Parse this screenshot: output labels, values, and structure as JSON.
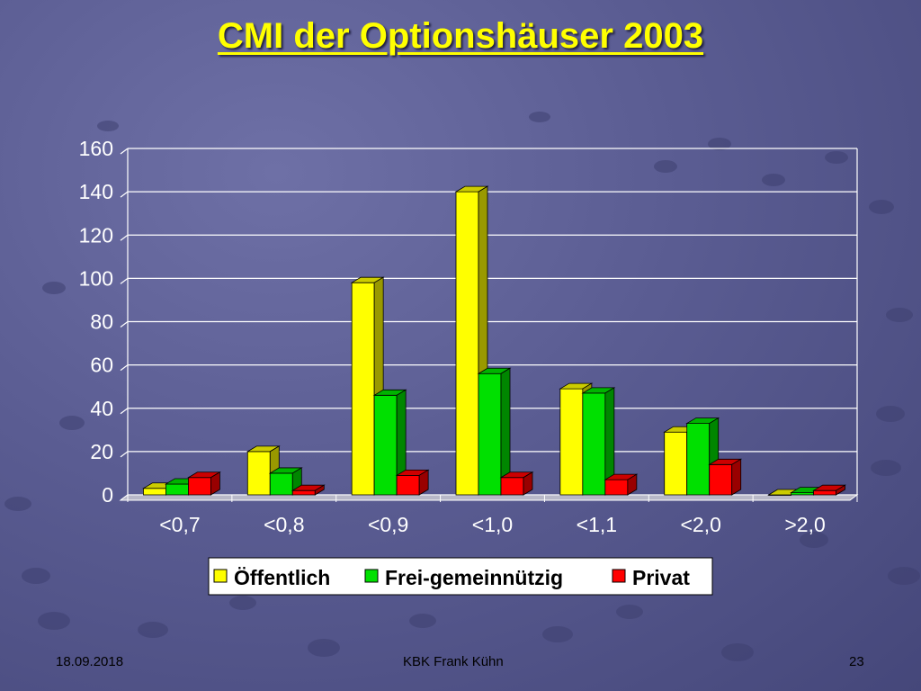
{
  "slide": {
    "title": "CMI der Optionshäuser 2003",
    "title_color": "#ffff00",
    "footer_date": "18.09.2018",
    "footer_author": "KBK Frank Kühn",
    "footer_page": "23"
  },
  "chart_data": {
    "type": "bar",
    "title": "CMI der Optionshäuser 2003",
    "categories": [
      "<0,7",
      "<0,8",
      "<0,9",
      "<1,0",
      "<1,1",
      "<2,0",
      ">2,0"
    ],
    "series": [
      {
        "name": "Öffentlich",
        "color": "#ffff00",
        "values": [
          3,
          20,
          98,
          140,
          49,
          29,
          0
        ]
      },
      {
        "name": "Frei-gemeinnützig",
        "color": "#00e000",
        "values": [
          5,
          10,
          46,
          56,
          47,
          33,
          1
        ]
      },
      {
        "name": "Privat",
        "color": "#ff0000",
        "values": [
          8,
          2,
          9,
          8,
          7,
          14,
          2
        ]
      }
    ],
    "ylim": [
      0,
      160
    ],
    "yticks": [
      "0",
      "20",
      "40",
      "60",
      "80",
      "100",
      "120",
      "140",
      "160"
    ],
    "grid": true,
    "legend_position": "bottom",
    "style": "3d-column"
  }
}
